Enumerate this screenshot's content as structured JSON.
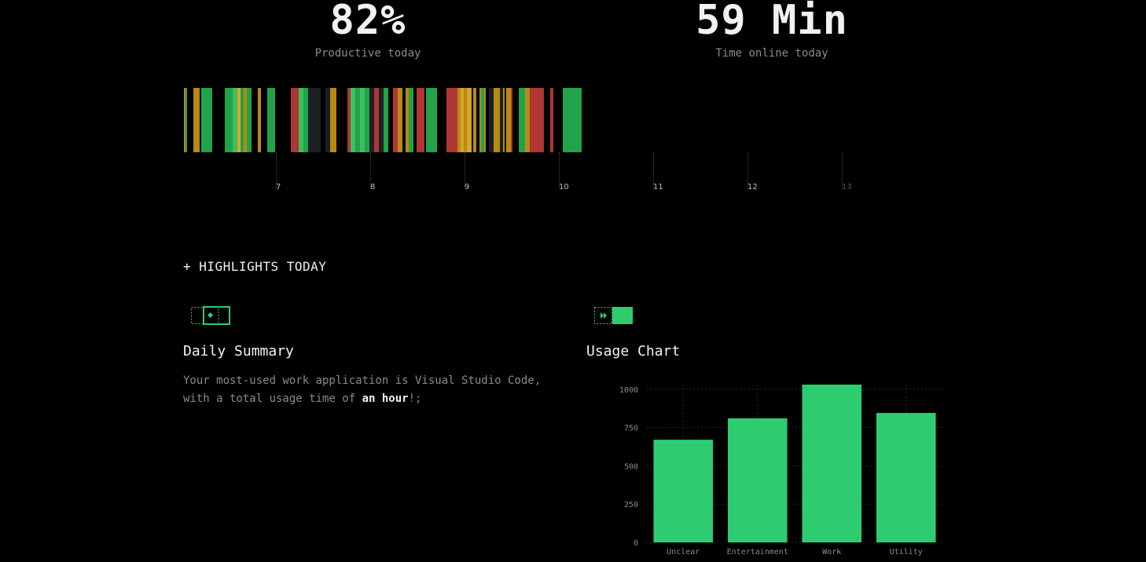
{
  "stats": {
    "productive": {
      "value": "82%",
      "label": "Productive today"
    },
    "online": {
      "value": "59 Min",
      "label": "Time online today"
    }
  },
  "colors": {
    "productive": "#22a24a",
    "productive_light": "#3dbe5f",
    "neutral": "#b88a14",
    "neutral_light": "#d4a72a",
    "distracting": "#b03535",
    "idle": "#1c1f24",
    "chart_bar": "#2ecc71",
    "accent": "#2ecc71"
  },
  "timeline": {
    "hour_labels": [
      "7",
      "8",
      "9",
      "10",
      "11",
      "12",
      "13"
    ],
    "segments": [
      {
        "start": "6:00",
        "end": "6:01",
        "category": "neutral"
      },
      {
        "start": "6:01",
        "end": "6:02",
        "category": "productive"
      },
      {
        "start": "6:06",
        "end": "6:10",
        "category": "neutral"
      },
      {
        "start": "6:11",
        "end": "6:14",
        "category": "productive"
      },
      {
        "start": "6:14",
        "end": "6:18",
        "category": "productive"
      },
      {
        "start": "6:26",
        "end": "6:31",
        "category": "productive"
      },
      {
        "start": "6:31",
        "end": "6:34",
        "category": "productive_light"
      },
      {
        "start": "6:34",
        "end": "6:36",
        "category": "neutral_light"
      },
      {
        "start": "6:36",
        "end": "6:38",
        "category": "productive"
      },
      {
        "start": "6:38",
        "end": "6:40",
        "category": "neutral"
      },
      {
        "start": "6:40",
        "end": "6:43",
        "category": "productive"
      },
      {
        "start": "6:47",
        "end": "6:49",
        "category": "neutral"
      },
      {
        "start": "6:53",
        "end": "6:58",
        "category": "productive"
      },
      {
        "start": "7:08",
        "end": "7:13",
        "category": "distracting"
      },
      {
        "start": "7:13",
        "end": "7:16",
        "category": "productive_light"
      },
      {
        "start": "7:16",
        "end": "7:19",
        "category": "productive"
      },
      {
        "start": "7:19",
        "end": "7:23",
        "category": "idle"
      },
      {
        "start": "7:23",
        "end": "7:27",
        "category": "idle"
      },
      {
        "start": "7:30",
        "end": "7:33",
        "category": "idle"
      },
      {
        "start": "7:33",
        "end": "7:37",
        "category": "neutral"
      },
      {
        "start": "7:44",
        "end": "7:46",
        "category": "distracting"
      },
      {
        "start": "7:46",
        "end": "7:49",
        "category": "productive_light"
      },
      {
        "start": "7:49",
        "end": "7:52",
        "category": "productive"
      },
      {
        "start": "7:52",
        "end": "7:55",
        "category": "productive_light"
      },
      {
        "start": "7:55",
        "end": "7:58",
        "category": "productive"
      },
      {
        "start": "7:58",
        "end": "8:01",
        "category": "idle"
      },
      {
        "start": "8:01",
        "end": "8:04",
        "category": "distracting"
      },
      {
        "start": "8:04",
        "end": "8:07",
        "category": "idle"
      },
      {
        "start": "8:07",
        "end": "8:10",
        "category": "productive"
      },
      {
        "start": "8:13",
        "end": "8:16",
        "category": "distracting"
      },
      {
        "start": "8:16",
        "end": "8:19",
        "category": "neutral"
      },
      {
        "start": "8:21",
        "end": "8:23",
        "category": "neutral"
      },
      {
        "start": "8:23",
        "end": "8:26",
        "category": "productive"
      },
      {
        "start": "8:28",
        "end": "8:33",
        "category": "distracting"
      },
      {
        "start": "8:34",
        "end": "8:41",
        "category": "productive"
      },
      {
        "start": "8:47",
        "end": "8:54",
        "category": "distracting"
      },
      {
        "start": "8:54",
        "end": "8:56",
        "category": "neutral"
      },
      {
        "start": "8:56",
        "end": "8:58",
        "category": "neutral_light"
      },
      {
        "start": "8:58",
        "end": "9:00",
        "category": "neutral"
      },
      {
        "start": "9:00",
        "end": "9:03",
        "category": "neutral_light"
      },
      {
        "start": "9:04",
        "end": "9:06",
        "category": "neutral"
      },
      {
        "start": "9:08",
        "end": "9:09",
        "category": "neutral"
      },
      {
        "start": "9:09",
        "end": "9:11",
        "category": "productive"
      },
      {
        "start": "9:11",
        "end": "9:12",
        "category": "neutral"
      },
      {
        "start": "9:14",
        "end": "9:17",
        "category": "idle"
      },
      {
        "start": "9:17",
        "end": "9:21",
        "category": "neutral"
      },
      {
        "start": "9:21",
        "end": "9:23",
        "category": "idle"
      },
      {
        "start": "9:23",
        "end": "9:24",
        "category": "neutral"
      },
      {
        "start": "9:25",
        "end": "9:28",
        "category": "neutral"
      },
      {
        "start": "9:28",
        "end": "9:29",
        "category": "distracting"
      },
      {
        "start": "9:33",
        "end": "9:37",
        "category": "productive"
      },
      {
        "start": "9:37",
        "end": "9:40",
        "category": "neutral"
      },
      {
        "start": "9:40",
        "end": "9:43",
        "category": "distracting"
      },
      {
        "start": "9:43",
        "end": "9:47",
        "category": "distracting"
      },
      {
        "start": "9:47",
        "end": "9:49",
        "category": "distracting"
      },
      {
        "start": "9:53",
        "end": "9:55",
        "category": "distracting"
      },
      {
        "start": "10:01",
        "end": "10:01",
        "category": "neutral"
      },
      {
        "start": "10:01",
        "end": "10:04",
        "category": "productive"
      },
      {
        "start": "10:04",
        "end": "10:13",
        "category": "productive"
      }
    ]
  },
  "highlights": {
    "heading": "+ HIGHLIGHTS TODAY",
    "summary": {
      "title": "Daily Summary",
      "text_before": "Your most-used work application is Visual Studio Code, with a total usage time of ",
      "text_bold": "an hour",
      "text_after": "!;"
    },
    "usage_chart": {
      "title": "Usage Chart"
    }
  },
  "chart_data": {
    "type": "bar",
    "categories": [
      "Unclear",
      "Entertainment",
      "Work",
      "Utility"
    ],
    "values": [
      670,
      810,
      1030,
      845
    ],
    "yticks": [
      0,
      250,
      500,
      750,
      1000
    ],
    "ylim": [
      0,
      1030
    ],
    "grid": true,
    "legend": "none"
  }
}
